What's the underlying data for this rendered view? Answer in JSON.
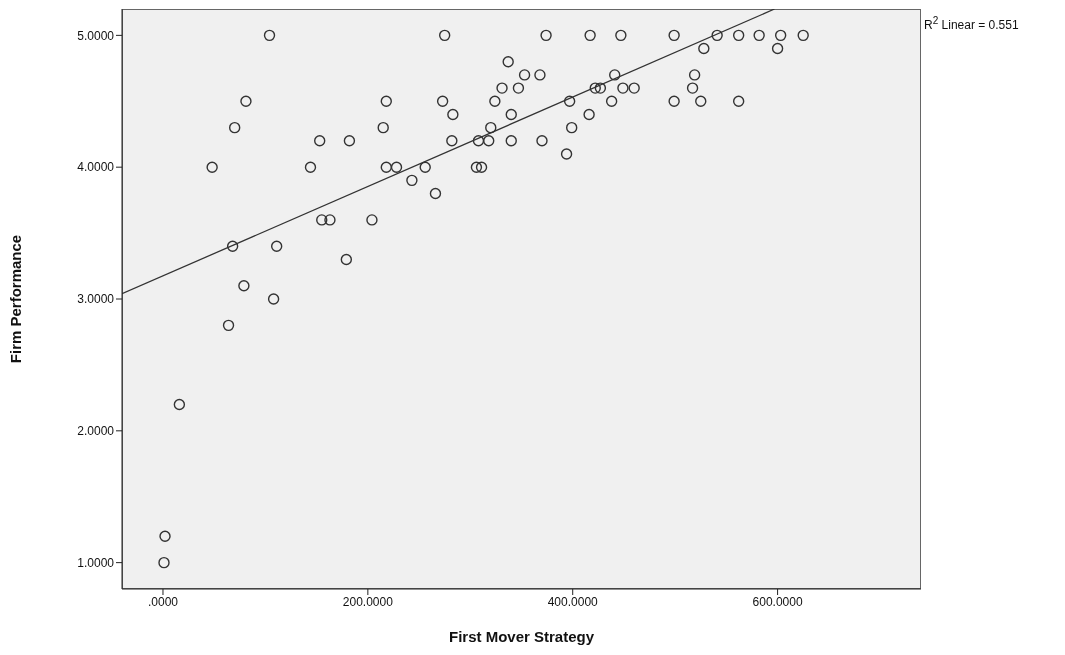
{
  "chart_data": {
    "type": "scatter",
    "xlabel": "First Mover Strategy",
    "ylabel": "Firm Performance",
    "annotations": [
      "R$^{2}$ Linear = 0.551"
    ],
    "xlim": [
      -40,
      740
    ],
    "xticks": [
      {
        "value": 0,
        "label": ".0000"
      },
      {
        "value": 200,
        "label": "200.0000"
      },
      {
        "value": 400,
        "label": "400.0000"
      },
      {
        "value": 600,
        "label": "600.0000"
      }
    ],
    "ylim": [
      0.8,
      5.2
    ],
    "yticks": [
      {
        "value": 1,
        "label": "1.0000"
      },
      {
        "value": 2,
        "label": "2.0000"
      },
      {
        "value": 3,
        "label": "3.0000"
      },
      {
        "value": 4,
        "label": "4.0000"
      },
      {
        "value": 5,
        "label": "5.0000"
      }
    ],
    "grid": false,
    "line_style": "solid",
    "series": [
      {
        "marker": "circle",
        "color": "#333333",
        "x": [
          104,
          275,
          374,
          417,
          447,
          499,
          541,
          562,
          582,
          603,
          625,
          528,
          600,
          337,
          353,
          368,
          441,
          519,
          331,
          347,
          422,
          427,
          449,
          460,
          517,
          81,
          218,
          273,
          324,
          397,
          438,
          499,
          525,
          562,
          283,
          340,
          416,
          70,
          215,
          320,
          399,
          153,
          182,
          282,
          308,
          318,
          340,
          370,
          394,
          48,
          144,
          218,
          228,
          256,
          306,
          311,
          243,
          266,
          155,
          163,
          204,
          68,
          111,
          179,
          79,
          108,
          64,
          16,
          2,
          1
        ],
        "values": [
          5,
          5,
          5,
          5,
          5,
          5,
          5,
          5,
          5,
          5,
          5,
          4.9,
          4.9,
          4.8,
          4.7,
          4.7,
          4.7,
          4.7,
          4.6,
          4.6,
          4.6,
          4.6,
          4.6,
          4.6,
          4.6,
          4.5,
          4.5,
          4.5,
          4.5,
          4.5,
          4.5,
          4.5,
          4.5,
          4.5,
          4.4,
          4.4,
          4.4,
          4.3,
          4.3,
          4.3,
          4.3,
          4.2,
          4.2,
          4.2,
          4.2,
          4.2,
          4.2,
          4.2,
          4.1,
          4,
          4,
          4,
          4,
          4,
          4,
          4,
          3.9,
          3.8,
          3.6,
          3.6,
          3.6,
          3.4,
          3.4,
          3.3,
          3.1,
          3,
          2.8,
          2.2,
          1.2,
          1
        ]
      },
      {
        "type": "line",
        "color": "#333333",
        "x": [
          -40,
          597
        ],
        "values": [
          3.04,
          5.2
        ]
      }
    ]
  }
}
